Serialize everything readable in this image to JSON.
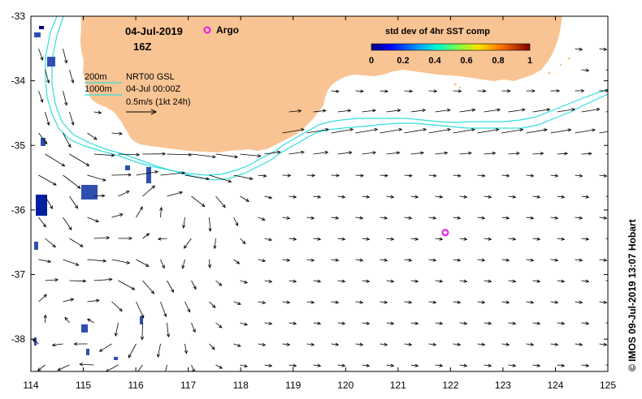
{
  "title": {
    "date": "04-Jul-2019",
    "hour": "16Z"
  },
  "legend": {
    "argo_label": "Argo",
    "argo_color": "#ee11ee",
    "isobaths": [
      {
        "label": "200m",
        "color": "#33dddd"
      },
      {
        "label": "1000m",
        "color": "#33dddd"
      }
    ],
    "source_line1": "NRT00 GSL",
    "source_line2": "04-Jul 00:00Z",
    "scale_label": "0.5m/s (1kt 24h)"
  },
  "colorbar": {
    "title": "std dev of 4hr SST comp",
    "ticks": [
      "0",
      "0.2",
      "0.4",
      "0.6",
      "0.8",
      "1"
    ],
    "min": 0,
    "max": 1
  },
  "axes": {
    "x_ticks": [
      "114",
      "115",
      "116",
      "117",
      "118",
      "119",
      "120",
      "121",
      "122",
      "123",
      "124",
      "125"
    ],
    "y_ticks": [
      "-33",
      "-34",
      "-35",
      "-36",
      "-37",
      "-38"
    ],
    "lon_range": [
      114,
      125
    ],
    "lat_range": [
      -38.5,
      -33
    ]
  },
  "argo_float": {
    "lon": 121.9,
    "lat": -36.35
  },
  "credit": "© IMOS 09-Jul-2019 13:07 Hobart",
  "colors": {
    "land": "#f9c493",
    "isobath": "#33dddd",
    "argo": "#ee11ee"
  }
}
